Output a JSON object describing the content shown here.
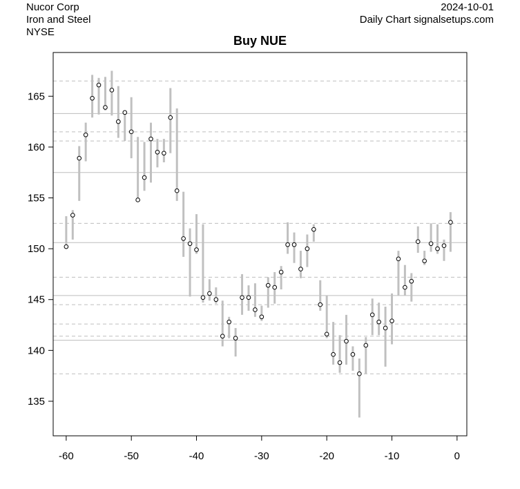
{
  "header": {
    "company": "Nucor Corp",
    "industry": "Iron and Steel",
    "exchange": "NYSE",
    "date": "2024-10-01",
    "source": "Daily Chart signalsetups.com"
  },
  "chart_data": {
    "type": "hlc_bar",
    "title": "Buy NUE",
    "xlabel": "",
    "ylabel": "",
    "xlim": [
      -62,
      1.5
    ],
    "ylim": [
      131.6,
      169.3
    ],
    "xticks": [
      -60,
      -50,
      -40,
      -30,
      -20,
      -10,
      0
    ],
    "yticks": [
      135,
      140,
      145,
      150,
      155,
      160,
      165
    ],
    "bar_color": "#c0c0c0",
    "close_marker": "open-circle",
    "grid": false,
    "hlines_solid": [
      163.3,
      157.5,
      150.6,
      145.4,
      141.0
    ],
    "hlines_dashed": [
      166.5,
      161.5,
      160.6,
      152.5,
      147.2,
      144.5,
      142.6,
      141.4,
      137.7
    ],
    "series": [
      {
        "x": [
          -60,
          -59,
          -58,
          -57,
          -56,
          -55,
          -54,
          -53,
          -52,
          -51,
          -50,
          -49,
          -48,
          -47,
          -46,
          -45,
          -44,
          -43,
          -42,
          -41,
          -40,
          -39,
          -38,
          -37,
          -36,
          -35,
          -34,
          -33,
          -32,
          -31,
          -30,
          -29,
          -28,
          -27,
          -26,
          -25,
          -24,
          -23,
          -22,
          -21,
          -20,
          -19,
          -18,
          -17,
          -16,
          -15,
          -14,
          -13,
          -12,
          -11,
          -10,
          -9,
          -8,
          -7,
          -6,
          -5,
          -4,
          -3,
          -2,
          -1
        ],
        "high": [
          153.2,
          153.8,
          160.1,
          162.4,
          167.1,
          166.8,
          166.9,
          167.5,
          166.0,
          163.5,
          164.9,
          161.0,
          160.5,
          162.4,
          160.8,
          160.8,
          165.8,
          163.8,
          155.6,
          152.0,
          153.4,
          152.4,
          147.0,
          146.2,
          144.9,
          143.3,
          142.2,
          147.5,
          146.4,
          146.6,
          144.4,
          147.2,
          147.7,
          148.3,
          152.6,
          151.6,
          149.8,
          151.4,
          152.4,
          146.9,
          145.4,
          142.8,
          141.5,
          143.5,
          140.4,
          139.2,
          141.3,
          145.1,
          144.7,
          144.3,
          145.6,
          149.8,
          148.4,
          147.6,
          152.2,
          149.8,
          152.5,
          152.4,
          150.9,
          153.6
        ],
        "low": [
          150.4,
          150.9,
          154.7,
          158.6,
          162.9,
          163.2,
          163.6,
          163.1,
          160.9,
          160.6,
          158.9,
          154.9,
          155.7,
          156.5,
          158.0,
          158.5,
          159.4,
          154.7,
          149.2,
          145.3,
          149.5,
          144.7,
          144.9,
          144.6,
          140.4,
          141.2,
          139.4,
          143.5,
          143.9,
          143.3,
          142.9,
          144.2,
          144.6,
          146.0,
          149.5,
          148.6,
          147.1,
          148.2,
          150.7,
          143.9,
          141.2,
          138.6,
          137.8,
          138.6,
          138.0,
          133.4,
          137.7,
          141.5,
          141.5,
          138.4,
          140.6,
          145.4,
          145.4,
          144.8,
          149.6,
          148.4,
          149.7,
          149.5,
          148.8,
          149.7
        ],
        "close": [
          150.2,
          153.3,
          158.9,
          161.2,
          164.8,
          166.1,
          163.9,
          165.6,
          162.5,
          163.4,
          161.5,
          154.8,
          157.0,
          160.8,
          159.5,
          159.4,
          162.9,
          155.7,
          151.0,
          150.5,
          149.9,
          145.2,
          145.6,
          145.0,
          141.4,
          142.8,
          141.2,
          145.2,
          145.2,
          144.0,
          143.3,
          146.4,
          146.2,
          147.7,
          150.4,
          150.4,
          148.0,
          150.0,
          151.9,
          144.5,
          141.6,
          139.6,
          138.8,
          140.9,
          139.6,
          137.7,
          140.5,
          143.5,
          142.8,
          142.2,
          142.9,
          149.0,
          146.2,
          146.8,
          150.7,
          148.8,
          150.5,
          150.0,
          150.3,
          152.6
        ]
      }
    ]
  }
}
